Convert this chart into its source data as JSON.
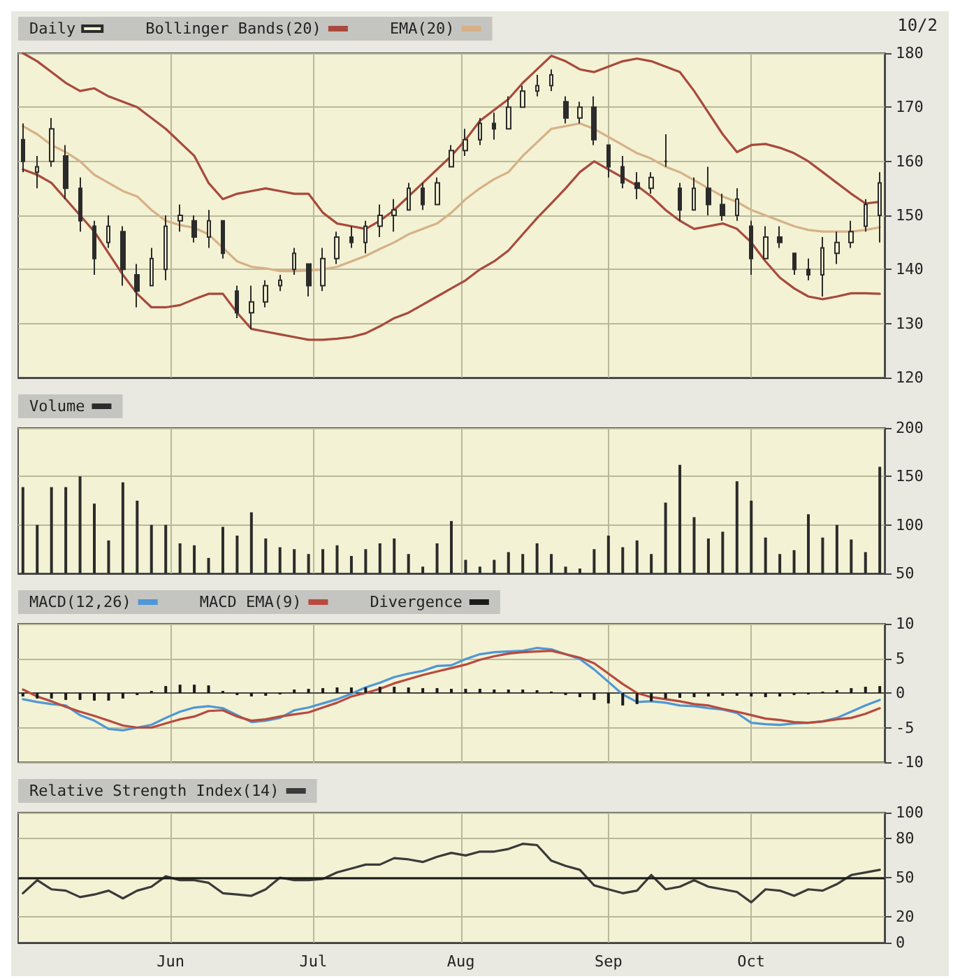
{
  "chart_data": [
    {
      "type": "candlestick",
      "legend": "top left",
      "grid": true,
      "tick_labels": "y",
      "annotations": [
        "10/2"
      ],
      "x": [
        "--05-01",
        "--05-04",
        "--05-07",
        "--05-10",
        "--05-13",
        "--05-16",
        "--05-19",
        "--05-22",
        "--05-25",
        "--05-28",
        "--05-31",
        "--06-03",
        "--06-06",
        "--06-09",
        "--06-12",
        "--06-15",
        "--06-18",
        "--06-21",
        "--06-24",
        "--06-27",
        "--06-30",
        "--07-03",
        "--07-06",
        "--07-09",
        "--07-12",
        "--07-15",
        "--07-18",
        "--07-21",
        "--07-24",
        "--07-27",
        "--07-30",
        "--08-02",
        "--08-05",
        "--08-08",
        "--08-11",
        "--08-14",
        "--08-17",
        "--08-20",
        "--08-23",
        "--08-26",
        "--08-29",
        "--09-01",
        "--09-04",
        "--09-07",
        "--09-10",
        "--09-13",
        "--09-16",
        "--09-19",
        "--09-22",
        "--09-25",
        "--09-28",
        "--10-01",
        "--10-04",
        "--10-07",
        "--10-10",
        "--10-13",
        "--10-16",
        "--10-19",
        "--10-22",
        "--10-25",
        "--10-28"
      ],
      "xlim": [
        "--04-30",
        "--10-29"
      ],
      "xticks": [
        {
          "value": "--06-01",
          "label": "Jun"
        },
        {
          "value": "--07-01",
          "label": "Jul"
        },
        {
          "value": "--08-01",
          "label": "Aug"
        },
        {
          "value": "--09-01",
          "label": "Sep"
        },
        {
          "value": "--10-01",
          "label": "Oct"
        }
      ],
      "ylim": [
        120,
        180
      ],
      "yticks": [
        120,
        130,
        140,
        150,
        160,
        170,
        180
      ],
      "series": [
        {
          "name": "Daily",
          "color": "#2b2b2b",
          "ohlc": [
            [
              164,
              167,
              158,
              160
            ],
            [
              158,
              161,
              155,
              159
            ],
            [
              160,
              168,
              159,
              166
            ],
            [
              161,
              163,
              153,
              155
            ],
            [
              155,
              157,
              147,
              149
            ],
            [
              148,
              149,
              139,
              142
            ],
            [
              145,
              150,
              144,
              148
            ],
            [
              147,
              148,
              137,
              140
            ],
            [
              139,
              141,
              133,
              136
            ],
            [
              137,
              144,
              137,
              142
            ],
            [
              140,
              150,
              138,
              148
            ],
            [
              149,
              152,
              147,
              150
            ],
            [
              149,
              150,
              145,
              146
            ],
            [
              146,
              151,
              144,
              149
            ],
            [
              149,
              149,
              142,
              143
            ],
            [
              136,
              137,
              131,
              132
            ],
            [
              132,
              137,
              129,
              134
            ],
            [
              134,
              138,
              133,
              137
            ],
            [
              137,
              139,
              136,
              138
            ],
            [
              140,
              144,
              139,
              143
            ],
            [
              141,
              141,
              135,
              137
            ],
            [
              137,
              144,
              136,
              142
            ],
            [
              142,
              147,
              141,
              146
            ],
            [
              146,
              148,
              144,
              145
            ],
            [
              145,
              149,
              143,
              148
            ],
            [
              148,
              152,
              146,
              150
            ],
            [
              150,
              153,
              147,
              151
            ],
            [
              151,
              156,
              151,
              155
            ],
            [
              155,
              156,
              151,
              152
            ],
            [
              152,
              157,
              152,
              156
            ],
            [
              159,
              163,
              159,
              162
            ],
            [
              162,
              166,
              161,
              164
            ],
            [
              164,
              168,
              163,
              167
            ],
            [
              167,
              169,
              164,
              166
            ],
            [
              166,
              172,
              166,
              170
            ],
            [
              170,
              174,
              170,
              173
            ],
            [
              173,
              176,
              172,
              174
            ],
            [
              174,
              177,
              173,
              176
            ],
            [
              171,
              172,
              167,
              168
            ],
            [
              168,
              171,
              167,
              170
            ],
            [
              170,
              172,
              163,
              164
            ],
            [
              163,
              163,
              157,
              159
            ],
            [
              159,
              161,
              155,
              156
            ],
            [
              156,
              158,
              153,
              155
            ],
            [
              155,
              158,
              154,
              157
            ],
            [
              160,
              165,
              159,
              160
            ],
            [
              155,
              156,
              149,
              151
            ],
            [
              151,
              157,
              151,
              155
            ],
            [
              155,
              159,
              150,
              152
            ],
            [
              152,
              154,
              149,
              150
            ],
            [
              150,
              155,
              149,
              153
            ],
            [
              148,
              149,
              139,
              142
            ],
            [
              142,
              148,
              142,
              146
            ],
            [
              146,
              148,
              144,
              145
            ],
            [
              143,
              143,
              139,
              140
            ],
            [
              140,
              142,
              138,
              139
            ],
            [
              139,
              146,
              135,
              144
            ],
            [
              143,
              147,
              141,
              145
            ],
            [
              145,
              149,
              144,
              147
            ],
            [
              148,
              153,
              147,
              152
            ],
            [
              150,
              158,
              145,
              156
            ]
          ]
        },
        {
          "name": "Bollinger Bands(20)",
          "type": "line",
          "color": "#a8493c",
          "values": [
            180,
            178.5,
            176.5,
            174.5,
            173,
            173.5,
            172,
            171,
            170,
            168,
            166,
            163.5,
            161,
            156,
            153,
            154,
            154.5,
            155,
            154.5,
            154,
            154,
            150.5,
            148.5,
            148,
            147.5,
            149,
            151,
            153.5,
            156,
            158.5,
            161,
            164,
            167.5,
            169.5,
            171.5,
            174.5,
            177,
            179.5,
            178.5,
            177,
            176.5,
            177.5,
            178.5,
            179,
            178.5,
            177.5,
            176.5,
            173,
            169,
            165,
            161.7,
            163,
            163.2,
            162.5,
            161.5,
            160,
            158,
            156,
            154,
            152.2,
            152.5
          ]
        },
        {
          "type": "line",
          "color": "#a8493c",
          "values": [
            158.5,
            157.5,
            156,
            153,
            150,
            147,
            143,
            139,
            135.5,
            133,
            133,
            133.4,
            134.5,
            135.5,
            135.5,
            132,
            129,
            128.5,
            128,
            127.5,
            127,
            127,
            127.2,
            127.5,
            128.2,
            129.5,
            131,
            132,
            133.5,
            135,
            136.5,
            138,
            140,
            141.5,
            143.5,
            146.5,
            149.5,
            152.2,
            155,
            158,
            160,
            158.5,
            157,
            155.5,
            153.5,
            151,
            149,
            147.5,
            148,
            148.5,
            147.5,
            145,
            141.5,
            138.5,
            136.5,
            135,
            134.5,
            135,
            135.6,
            135.6,
            135.5
          ]
        },
        {
          "name": "EMA(20)",
          "type": "line",
          "color": "#d6b187",
          "values": [
            166.5,
            165,
            163,
            161.7,
            160,
            157.5,
            156,
            154.5,
            153.5,
            151,
            149,
            148.2,
            147.7,
            146.5,
            144,
            141.5,
            140.5,
            140.2,
            139.7,
            139.7,
            139.8,
            140,
            140.5,
            141.5,
            142.5,
            143.8,
            145,
            146.5,
            147.5,
            148.5,
            150.5,
            153,
            155,
            156.7,
            158,
            161,
            163.5,
            166,
            166.5,
            167,
            166,
            164.5,
            163,
            161.5,
            160.5,
            159,
            158,
            156.5,
            155,
            153.5,
            152.5,
            151,
            150,
            149,
            148,
            147.3,
            147,
            147,
            147,
            147.3,
            147.8
          ]
        }
      ]
    },
    {
      "type": "bar",
      "legend": "top left",
      "grid": true,
      "tick_labels": "y",
      "x": [
        "--05-01",
        "--05-04",
        "--05-07",
        "--05-10",
        "--05-13",
        "--05-16",
        "--05-19",
        "--05-22",
        "--05-25",
        "--05-28",
        "--05-31",
        "--06-03",
        "--06-06",
        "--06-09",
        "--06-12",
        "--06-15",
        "--06-18",
        "--06-21",
        "--06-24",
        "--06-27",
        "--06-30",
        "--07-03",
        "--07-06",
        "--07-09",
        "--07-12",
        "--07-15",
        "--07-18",
        "--07-21",
        "--07-24",
        "--07-27",
        "--07-30",
        "--08-02",
        "--08-05",
        "--08-08",
        "--08-11",
        "--08-14",
        "--08-17",
        "--08-20",
        "--08-23",
        "--08-26",
        "--08-29",
        "--09-01",
        "--09-04",
        "--09-07",
        "--09-10",
        "--09-13",
        "--09-16",
        "--09-19",
        "--09-22",
        "--09-25",
        "--09-28",
        "--10-01",
        "--10-04",
        "--10-07",
        "--10-10",
        "--10-13",
        "--10-16",
        "--10-19",
        "--10-22",
        "--10-25",
        "--10-28"
      ],
      "xlim": [
        "--04-30",
        "--10-29"
      ],
      "xticks": [
        {
          "value": "--06-01",
          "label": "Jun"
        },
        {
          "value": "--07-01",
          "label": "Jul"
        },
        {
          "value": "--08-01",
          "label": "Aug"
        },
        {
          "value": "--09-01",
          "label": "Sep"
        },
        {
          "value": "--10-01",
          "label": "Oct"
        }
      ],
      "ylim": [
        50,
        200
      ],
      "yticks": [
        50,
        100,
        150,
        200
      ],
      "series": [
        {
          "name": "Volume",
          "color": "#2b2b2b",
          "values": [
            139,
            100,
            139,
            139,
            150,
            122,
            84,
            144,
            125,
            100,
            100,
            81,
            79,
            66,
            98,
            89,
            113,
            86,
            77,
            75,
            70,
            75,
            79,
            68,
            75,
            81,
            86,
            70,
            57,
            81,
            104,
            64,
            57,
            64,
            72,
            70,
            81,
            70,
            57,
            55,
            75,
            89,
            77,
            84,
            70,
            123,
            162,
            108,
            86,
            93,
            145,
            125,
            87,
            70,
            74,
            111,
            87,
            100,
            85,
            72,
            160
          ]
        }
      ]
    },
    {
      "type": "line",
      "legend": "top left",
      "grid": true,
      "tick_labels": "y",
      "x": [
        "--05-01",
        "--05-04",
        "--05-07",
        "--05-10",
        "--05-13",
        "--05-16",
        "--05-19",
        "--05-22",
        "--05-25",
        "--05-28",
        "--05-31",
        "--06-03",
        "--06-06",
        "--06-09",
        "--06-12",
        "--06-15",
        "--06-18",
        "--06-21",
        "--06-24",
        "--06-27",
        "--06-30",
        "--07-03",
        "--07-06",
        "--07-09",
        "--07-12",
        "--07-15",
        "--07-18",
        "--07-21",
        "--07-24",
        "--07-27",
        "--07-30",
        "--08-02",
        "--08-05",
        "--08-08",
        "--08-11",
        "--08-14",
        "--08-17",
        "--08-20",
        "--08-23",
        "--08-26",
        "--08-29",
        "--09-01",
        "--09-04",
        "--09-07",
        "--09-10",
        "--09-13",
        "--09-16",
        "--09-19",
        "--09-22",
        "--09-25",
        "--09-28",
        "--10-01",
        "--10-04",
        "--10-07",
        "--10-10",
        "--10-13",
        "--10-16",
        "--10-19",
        "--10-22",
        "--10-25",
        "--10-28"
      ],
      "xlim": [
        "--04-30",
        "--10-29"
      ],
      "xticks": [
        {
          "value": "--06-01",
          "label": "Jun"
        },
        {
          "value": "--07-01",
          "label": "Jul"
        },
        {
          "value": "--08-01",
          "label": "Aug"
        },
        {
          "value": "--09-01",
          "label": "Sep"
        },
        {
          "value": "--10-01",
          "label": "Oct"
        }
      ],
      "ylim": [
        -10,
        10
      ],
      "yticks": [
        -10,
        -5,
        0,
        5,
        10
      ],
      "series": [
        {
          "name": "MACD(12,26)",
          "color": "#4f97d6",
          "values": [
            -0.9,
            -1.3,
            -1.6,
            -1.8,
            -3.2,
            -4.0,
            -5.2,
            -5.4,
            -5.0,
            -4.6,
            -3.6,
            -2.7,
            -2.1,
            -1.9,
            -2.2,
            -3.2,
            -4.2,
            -4.0,
            -3.6,
            -2.5,
            -2.1,
            -1.5,
            -0.9,
            -0.1,
            0.8,
            1.5,
            2.3,
            2.8,
            3.2,
            3.9,
            4.0,
            4.9,
            5.6,
            5.9,
            6.0,
            6.1,
            6.5,
            6.3,
            5.6,
            4.9,
            3.4,
            1.6,
            -0.2,
            -1.3,
            -1.2,
            -1.4,
            -1.8,
            -1.9,
            -2.2,
            -2.4,
            -2.9,
            -4.3,
            -4.5,
            -4.6,
            -4.4,
            -4.3,
            -4.1,
            -3.6,
            -2.7,
            -1.8,
            -1.0
          ]
        },
        {
          "name": "MACD EMA(9)",
          "type": "line",
          "color": "#b84a3e",
          "values": [
            0.5,
            -0.5,
            -1.2,
            -2.0,
            -2.7,
            -3.3,
            -4.0,
            -4.7,
            -5.0,
            -5.0,
            -4.4,
            -3.8,
            -3.4,
            -2.6,
            -2.5,
            -3.4,
            -4.0,
            -3.8,
            -3.4,
            -3.1,
            -2.8,
            -2.1,
            -1.4,
            -0.5,
            0,
            0.6,
            1.4,
            2.0,
            2.6,
            3.1,
            3.6,
            4.1,
            4.8,
            5.3,
            5.7,
            5.9,
            6.0,
            6.1,
            5.6,
            5.1,
            4.3,
            2.8,
            1.3,
            0,
            -0.6,
            -0.9,
            -1.2,
            -1.6,
            -1.8,
            -2.3,
            -2.7,
            -3.2,
            -3.7,
            -3.9,
            -4.2,
            -4.3,
            -4.1,
            -3.8,
            -3.6,
            -3.0,
            -2.2
          ]
        },
        {
          "name": "Divergence",
          "type": "bar",
          "color": "#1a1a1a",
          "values": [
            -0.5,
            -0.8,
            -0.8,
            -1.0,
            -1.0,
            -1.1,
            -1.1,
            -0.8,
            -0.3,
            0.3,
            1.0,
            1.2,
            1.2,
            1.1,
            0.3,
            -0.3,
            -0.5,
            -0.4,
            -0.2,
            0.5,
            0.6,
            0.7,
            0.8,
            0.8,
            0.8,
            0.9,
            0.9,
            0.8,
            0.7,
            0.7,
            0.6,
            0.6,
            0.6,
            0.5,
            0.5,
            0.5,
            0.4,
            0.2,
            -0.3,
            -0.6,
            -1.0,
            -1.5,
            -1.8,
            -1.6,
            -1.2,
            -0.8,
            -0.7,
            -0.6,
            -0.5,
            -0.4,
            -0.4,
            -0.5,
            -0.6,
            -0.5,
            -0.3,
            -0.2,
            0.2,
            0.4,
            0.7,
            0.9,
            1.0
          ]
        }
      ]
    },
    {
      "type": "line",
      "legend": "top left",
      "grid": true,
      "x": [
        "--05-01",
        "--05-04",
        "--05-07",
        "--05-10",
        "--05-13",
        "--05-16",
        "--05-19",
        "--05-22",
        "--05-25",
        "--05-28",
        "--05-31",
        "--06-03",
        "--06-06",
        "--06-09",
        "--06-12",
        "--06-15",
        "--06-18",
        "--06-21",
        "--06-24",
        "--06-27",
        "--06-30",
        "--07-03",
        "--07-06",
        "--07-09",
        "--07-12",
        "--07-15",
        "--07-18",
        "--07-21",
        "--07-24",
        "--07-27",
        "--07-30",
        "--08-02",
        "--08-05",
        "--08-08",
        "--08-11",
        "--08-14",
        "--08-17",
        "--08-20",
        "--08-23",
        "--08-26",
        "--08-29",
        "--09-01",
        "--09-04",
        "--09-07",
        "--09-10",
        "--09-13",
        "--09-16",
        "--09-19",
        "--09-22",
        "--09-25",
        "--09-28",
        "--10-01",
        "--10-04",
        "--10-07",
        "--10-10",
        "--10-13",
        "--10-16",
        "--10-19",
        "--10-22",
        "--10-25",
        "--10-28"
      ],
      "xlim": [
        "--04-30",
        "--10-29"
      ],
      "xticks": [
        {
          "value": "--06-01",
          "label": "Jun"
        },
        {
          "value": "--07-01",
          "label": "Jul"
        },
        {
          "value": "--08-01",
          "label": "Aug"
        },
        {
          "value": "--09-01",
          "label": "Sep"
        },
        {
          "value": "--10-01",
          "label": "Oct"
        }
      ],
      "ylim": [
        0,
        100
      ],
      "yticks": [
        0,
        20,
        50,
        80,
        100
      ],
      "ref_lines": [
        {
          "axis": "y",
          "value": 50,
          "color": "#1a1a1a"
        }
      ],
      "series": [
        {
          "name": "Relative Strength Index(14)",
          "color": "#3a3a3a",
          "values": [
            38,
            48,
            41,
            40,
            35,
            37,
            40,
            34,
            40,
            43,
            51,
            48,
            48,
            46,
            38,
            37,
            36,
            41,
            50,
            48,
            48,
            49,
            54,
            57,
            60,
            60,
            65,
            64,
            62,
            66,
            69,
            67,
            70,
            70,
            72,
            76,
            75,
            63,
            59,
            56,
            44,
            41,
            38,
            40,
            52,
            41,
            43,
            48,
            43,
            41,
            39,
            31,
            41,
            40,
            36,
            41,
            40,
            45,
            52,
            54,
            56
          ]
        }
      ]
    }
  ]
}
